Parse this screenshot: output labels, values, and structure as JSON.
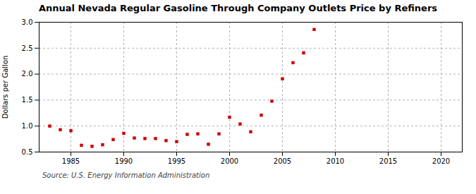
{
  "chart_data": {
    "type": "scatter",
    "title": "Annual Nevada Regular Gasoline Through Company Outlets Price by Refiners",
    "ylabel": "Dollars per Gallon",
    "source": "Source: U.S. Energy Information Administration",
    "x": [
      1983,
      1984,
      1985,
      1986,
      1987,
      1988,
      1989,
      1990,
      1991,
      1992,
      1993,
      1994,
      1995,
      1996,
      1997,
      1998,
      1999,
      2000,
      2001,
      2002,
      2003,
      2004,
      2005,
      2006,
      2007,
      2008
    ],
    "values": [
      1.0,
      0.93,
      0.91,
      0.63,
      0.61,
      0.64,
      0.74,
      0.86,
      0.77,
      0.76,
      0.76,
      0.72,
      0.7,
      0.84,
      0.85,
      0.65,
      0.85,
      1.17,
      1.04,
      0.89,
      1.21,
      1.48,
      1.91,
      2.22,
      2.41,
      2.86
    ],
    "color": "#cc0000",
    "marker": "square",
    "xlim": [
      1982,
      2022
    ],
    "ylim": [
      0.5,
      3.0
    ],
    "xticks": [
      1985,
      1990,
      1995,
      2000,
      2005,
      2010,
      2015,
      2020
    ],
    "yticks": [
      0.5,
      {
        "value": 1,
        "label": "1.0"
      },
      1.5,
      {
        "value": 2,
        "label": "2.0"
      },
      2.5,
      {
        "value": 3,
        "label": "3.0"
      }
    ],
    "grid": true
  }
}
